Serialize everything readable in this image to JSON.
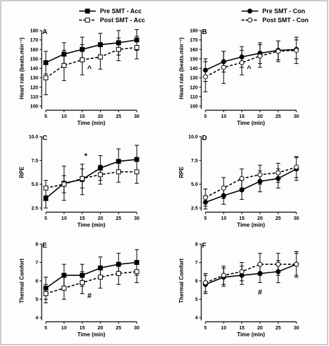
{
  "legend_left": [
    {
      "label": "Pre SMT - Acc",
      "style": "solid",
      "marker": "square-filled"
    },
    {
      "label": "Post SMT - Acc",
      "style": "dashed",
      "marker": "square-open"
    }
  ],
  "legend_right": [
    {
      "label": "Pre SMT - Con",
      "style": "solid",
      "marker": "circle-filled"
    },
    {
      "label": "Post SMT - Con",
      "style": "dashed",
      "marker": "circle-open"
    }
  ],
  "chart_data": [
    {
      "id": "A",
      "type": "line",
      "panel_label": "A",
      "xlabel": "Time (min)",
      "ylabel": "Heart rate (beats.min⁻¹)",
      "x": [
        5,
        10,
        15,
        20,
        25,
        30
      ],
      "xlim": [
        5,
        30
      ],
      "xticks": [
        "5",
        "10",
        "15",
        "20",
        "25",
        "30"
      ],
      "ylim": [
        100,
        180
      ],
      "yticks": [
        "100",
        "110",
        "120",
        "130",
        "140",
        "150",
        "160",
        "170",
        "180"
      ],
      "marker": "square",
      "series": [
        {
          "name": "Pre SMT - Acc",
          "style": "solid",
          "values": [
            146,
            155,
            160,
            165,
            167,
            170
          ],
          "err": [
            12,
            12,
            13,
            12,
            13,
            11
          ]
        },
        {
          "name": "Post SMT - Acc",
          "style": "dashed",
          "values": [
            130,
            143,
            149,
            152,
            160,
            162
          ],
          "err": [
            18,
            16,
            16,
            13,
            12,
            12
          ]
        }
      ],
      "annotations": [
        {
          "text": "^",
          "x": 17,
          "y": 140
        }
      ]
    },
    {
      "id": "B",
      "type": "line",
      "panel_label": "B",
      "xlabel": "Time (min)",
      "ylabel": "Heart rate (beats.min⁻¹)",
      "x": [
        5,
        10,
        15,
        20,
        25,
        30
      ],
      "xlim": [
        5,
        30
      ],
      "xticks": [
        "5",
        "10",
        "15",
        "20",
        "25",
        "30"
      ],
      "ylim": [
        100,
        180
      ],
      "yticks": [
        "100",
        "110",
        "120",
        "130",
        "140",
        "150",
        "160",
        "170",
        "180"
      ],
      "marker": "circle",
      "series": [
        {
          "name": "Pre SMT - Con",
          "style": "solid",
          "values": [
            138,
            147,
            152,
            156,
            159,
            160
          ],
          "err": [
            12,
            11,
            11,
            11,
            10,
            10
          ]
        },
        {
          "name": "Post SMT - Con",
          "style": "dashed",
          "values": [
            131,
            141,
            146,
            153,
            158,
            159
          ],
          "err": [
            16,
            17,
            13,
            12,
            11,
            14
          ]
        }
      ],
      "annotations": [
        {
          "text": "^",
          "x": 17,
          "y": 140
        }
      ]
    },
    {
      "id": "C",
      "type": "line",
      "panel_label": "C",
      "xlabel": "Time (min)",
      "ylabel": "RPE",
      "x": [
        5,
        10,
        15,
        20,
        25,
        30
      ],
      "xlim": [
        5,
        30
      ],
      "xticks": [
        "5",
        "10",
        "15",
        "20",
        "25",
        "30"
      ],
      "ylim": [
        2.5,
        10.0
      ],
      "yticks": [
        "2.5",
        "5.0",
        "7.5",
        "10.0"
      ],
      "marker": "square",
      "series": [
        {
          "name": "Pre SMT - Acc",
          "style": "solid",
          "values": [
            3.5,
            5.1,
            5.5,
            6.7,
            7.4,
            7.6
          ],
          "err": [
            1.0,
            1.8,
            1.6,
            1.3,
            1.3,
            1.5
          ]
        },
        {
          "name": "Post SMT - Acc",
          "style": "dashed",
          "values": [
            4.6,
            5.0,
            5.6,
            6.0,
            6.3,
            6.3
          ],
          "err": [
            0.8,
            0.9,
            1.0,
            1.0,
            1.1,
            1.2
          ]
        }
      ],
      "annotations": [
        {
          "text": "*",
          "x": 16,
          "y": 8.0
        }
      ]
    },
    {
      "id": "D",
      "type": "line",
      "panel_label": "D",
      "xlabel": "Time (min)",
      "ylabel": "RPE",
      "x": [
        5,
        10,
        15,
        20,
        25,
        30
      ],
      "xlim": [
        5,
        30
      ],
      "xticks": [
        "5",
        "10",
        "15",
        "20",
        "25",
        "30"
      ],
      "ylim": [
        2.5,
        10.0
      ],
      "yticks": [
        "2.5",
        "5.0",
        "7.5",
        "10.0"
      ],
      "marker": "circle",
      "series": [
        {
          "name": "Pre SMT - Con",
          "style": "solid",
          "values": [
            3.1,
            3.8,
            4.4,
            5.3,
            5.6,
            6.6
          ],
          "err": [
            0.7,
            0.9,
            1.0,
            1.1,
            1.0,
            1.2
          ]
        },
        {
          "name": "Post SMT - Con",
          "style": "dashed",
          "values": [
            3.6,
            4.6,
            5.6,
            6.0,
            6.2,
            6.8
          ],
          "err": [
            0.9,
            1.1,
            1.0,
            1.0,
            1.0,
            1.1
          ]
        }
      ],
      "annotations": []
    },
    {
      "id": "E",
      "type": "line",
      "panel_label": "E",
      "xlabel": "Time (min)",
      "ylabel": "Thermal Comfort",
      "x": [
        5,
        10,
        15,
        20,
        25,
        30
      ],
      "xlim": [
        5,
        30
      ],
      "xticks": [
        "5",
        "10",
        "15",
        "20",
        "25",
        "30"
      ],
      "ylim": [
        4,
        8
      ],
      "yticks": [
        "4",
        "5",
        "6",
        "7",
        "8"
      ],
      "marker": "square",
      "series": [
        {
          "name": "Pre SMT - Acc",
          "style": "solid",
          "values": [
            5.6,
            6.3,
            6.3,
            6.7,
            6.9,
            7.0
          ],
          "err": [
            0.6,
            0.6,
            0.6,
            0.6,
            0.6,
            0.7
          ]
        },
        {
          "name": "Post SMT - Acc",
          "style": "dashed",
          "values": [
            5.3,
            5.6,
            5.9,
            6.2,
            6.4,
            6.5
          ],
          "err": [
            0.5,
            0.6,
            0.6,
            0.6,
            0.6,
            0.6
          ]
        }
      ],
      "annotations": [
        {
          "text": "#",
          "x": 17,
          "y": 5.2
        }
      ]
    },
    {
      "id": "F",
      "type": "line",
      "panel_label": "F",
      "xlabel": "Time (min)",
      "ylabel": "Thermal Comfort",
      "x": [
        5,
        10,
        15,
        20,
        25,
        30
      ],
      "xlim": [
        5,
        30
      ],
      "xticks": [
        "5",
        "10",
        "15",
        "20",
        "25",
        "30"
      ],
      "ylim": [
        4,
        8
      ],
      "yticks": [
        "4",
        "5",
        "6",
        "7",
        "8"
      ],
      "marker": "circle",
      "series": [
        {
          "name": "Pre SMT - Con",
          "style": "solid",
          "values": [
            5.8,
            6.2,
            6.3,
            6.4,
            6.5,
            6.9
          ],
          "err": [
            0.5,
            0.5,
            0.5,
            0.5,
            0.6,
            0.7
          ]
        },
        {
          "name": "Post SMT - Con",
          "style": "dashed",
          "values": [
            5.9,
            6.3,
            6.5,
            6.9,
            6.9,
            6.9
          ],
          "err": [
            0.5,
            0.5,
            0.5,
            0.6,
            0.6,
            0.6
          ]
        }
      ],
      "annotations": [
        {
          "text": "#",
          "x": 20,
          "y": 5.4
        }
      ]
    }
  ]
}
